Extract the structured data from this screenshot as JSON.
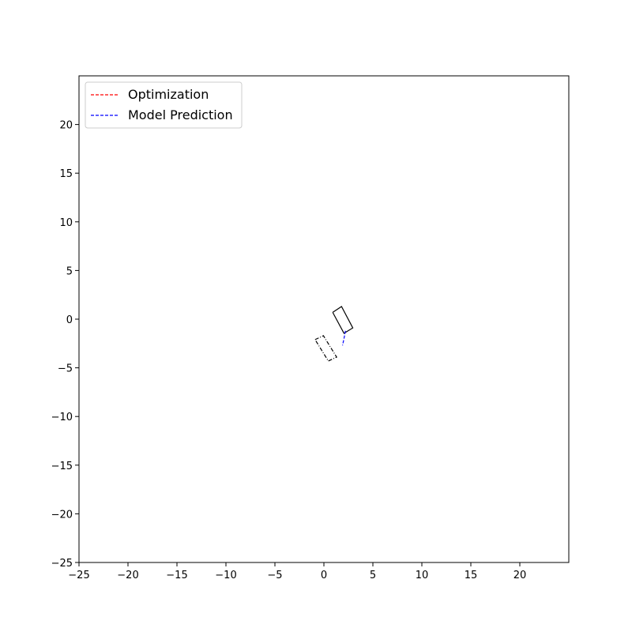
{
  "chart_data": {
    "type": "line",
    "title": "",
    "xlabel": "",
    "ylabel": "",
    "xlim": [
      -25,
      25
    ],
    "ylim": [
      -25,
      25
    ],
    "xticks": [
      -25,
      -20,
      -15,
      -10,
      -5,
      0,
      5,
      10,
      15,
      20
    ],
    "yticks": [
      -25,
      -20,
      -15,
      -10,
      -5,
      0,
      5,
      10,
      15,
      20
    ],
    "xtick_labels": [
      "−25",
      "−20",
      "−15",
      "−10",
      "−5",
      "0",
      "5",
      "10",
      "15",
      "20"
    ],
    "ytick_labels": [
      "−25",
      "−20",
      "−15",
      "−10",
      "−5",
      "0",
      "5",
      "10",
      "15",
      "20"
    ],
    "grid": false,
    "legend_position": "top-left",
    "series": [
      {
        "name": "Optimization",
        "color": "#ff0000",
        "style": "dashed",
        "x": [],
        "y": []
      },
      {
        "name": "Model Prediction",
        "color": "#0000ff",
        "style": "dashed",
        "x": [
          2.2,
          2.05,
          1.9
        ],
        "y": [
          -1.2,
          -2.0,
          -2.7
        ]
      }
    ],
    "shapes": [
      {
        "name": "vehicle-solid",
        "style": "solid",
        "color": "#000000",
        "x": [
          0.9,
          1.8,
          2.95,
          2.05,
          0.9
        ],
        "y": [
          0.7,
          1.3,
          -0.9,
          -1.45,
          0.7
        ]
      },
      {
        "name": "vehicle-dashdot",
        "style": "dashdot",
        "color": "#000000",
        "x": [
          -0.9,
          -0.05,
          1.3,
          0.45,
          -0.9
        ],
        "y": [
          -2.1,
          -1.7,
          -3.9,
          -4.3,
          -2.1
        ]
      }
    ]
  }
}
